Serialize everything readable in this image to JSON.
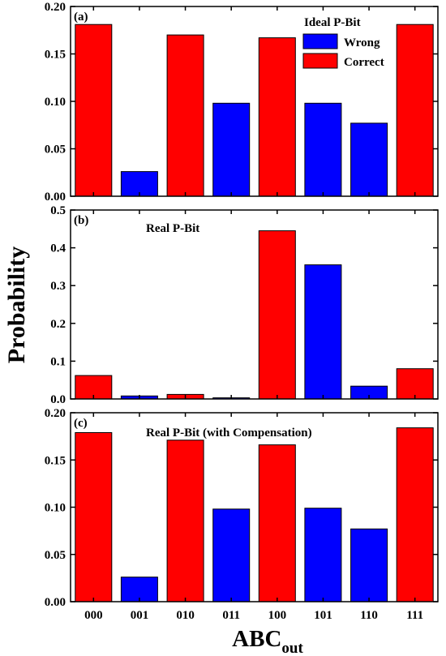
{
  "chart_data": [
    {
      "type": "bar",
      "panel_label": "(a)",
      "title": "Ideal P-Bit",
      "categories": [
        "000",
        "001",
        "010",
        "011",
        "100",
        "101",
        "110",
        "111"
      ],
      "values": [
        0.181,
        0.026,
        0.17,
        0.098,
        0.167,
        0.098,
        0.077,
        0.181
      ],
      "correctness": [
        "Correct",
        "Wrong",
        "Correct",
        "Wrong",
        "Correct",
        "Wrong",
        "Wrong",
        "Correct"
      ],
      "ylim": [
        0,
        0.2
      ],
      "yticks": [
        "0.00",
        "0.05",
        "0.10",
        "0.15",
        "0.20"
      ],
      "legend": {
        "entries": [
          "Wrong",
          "Correct"
        ],
        "placement": "top-right"
      }
    },
    {
      "type": "bar",
      "panel_label": "(b)",
      "title": "Real P-Bit",
      "categories": [
        "000",
        "001",
        "010",
        "011",
        "100",
        "101",
        "110",
        "111"
      ],
      "values": [
        0.062,
        0.008,
        0.012,
        0.003,
        0.445,
        0.355,
        0.034,
        0.08
      ],
      "correctness": [
        "Correct",
        "Wrong",
        "Correct",
        "Wrong",
        "Correct",
        "Wrong",
        "Wrong",
        "Correct"
      ],
      "ylim": [
        0,
        0.5
      ],
      "yticks": [
        "0.0",
        "0.1",
        "0.2",
        "0.3",
        "0.4",
        "0.5"
      ]
    },
    {
      "type": "bar",
      "panel_label": "(c)",
      "title": "Real P-Bit (with Compensation)",
      "categories": [
        "000",
        "001",
        "010",
        "011",
        "100",
        "101",
        "110",
        "111"
      ],
      "values": [
        0.179,
        0.026,
        0.171,
        0.098,
        0.166,
        0.099,
        0.077,
        0.184
      ],
      "correctness": [
        "Correct",
        "Wrong",
        "Correct",
        "Wrong",
        "Correct",
        "Wrong",
        "Wrong",
        "Correct"
      ],
      "ylim": [
        0,
        0.2
      ],
      "yticks": [
        "0.00",
        "0.05",
        "0.10",
        "0.15",
        "0.20"
      ]
    }
  ],
  "axes": {
    "ylabel": "Probability",
    "xlabel_main": "ABC",
    "xlabel_sub": "out"
  },
  "colors": {
    "Correct": "#ff0000",
    "Wrong": "#0000ff"
  }
}
